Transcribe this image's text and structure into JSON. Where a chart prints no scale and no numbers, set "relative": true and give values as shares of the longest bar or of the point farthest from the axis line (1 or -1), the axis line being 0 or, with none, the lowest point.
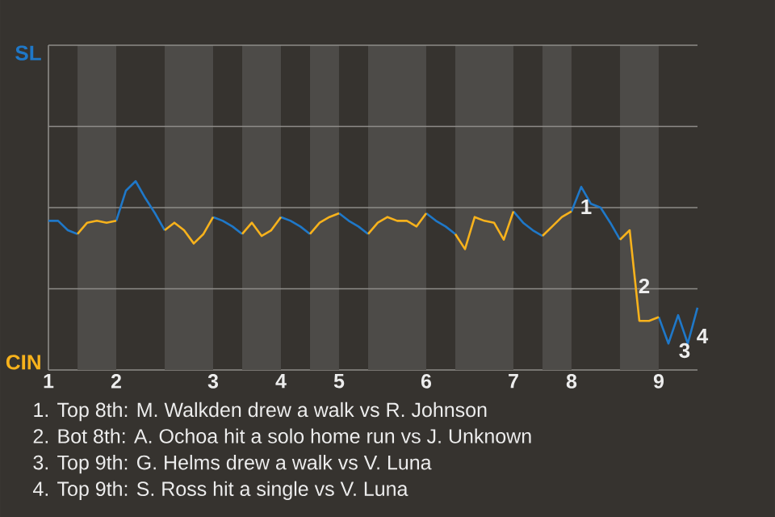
{
  "chart_data": {
    "type": "line",
    "relative": true,
    "categories": [
      "1",
      null,
      null,
      null,
      null,
      null,
      null,
      "2",
      null,
      null,
      null,
      null,
      null,
      null,
      null,
      null,
      null,
      "3",
      null,
      null,
      null,
      null,
      null,
      null,
      "4",
      null,
      null,
      null,
      null,
      null,
      "5",
      null,
      null,
      null,
      null,
      null,
      null,
      null,
      null,
      "6",
      null,
      null,
      null,
      null,
      null,
      null,
      null,
      null,
      "7",
      null,
      null,
      null,
      null,
      null,
      "8",
      null,
      null,
      null,
      null,
      null,
      null,
      null,
      null,
      "9",
      null,
      null,
      null,
      null
    ],
    "series": [
      {
        "color": "#1f78c8",
        "values": [
          0.79,
          0.79,
          0.74,
          0.72,
          null,
          null,
          null,
          0.79,
          0.95,
          1,
          0.91,
          0.83,
          0.74,
          null,
          null,
          null,
          null,
          0.81,
          0.79,
          0.76,
          0.72,
          null,
          null,
          null,
          0.81,
          0.79,
          0.76,
          0.72,
          null,
          null,
          0.83,
          0.79,
          0.76,
          0.72,
          null,
          null,
          null,
          null,
          null,
          0.83,
          0.79,
          0.76,
          0.72,
          null,
          null,
          null,
          null,
          null,
          0.84,
          0.78,
          0.74,
          0.71,
          null,
          null,
          0.84,
          0.97,
          0.88,
          0.86,
          0.78,
          0.69,
          null,
          null,
          null,
          0.28,
          0.14,
          0.29,
          0.14,
          0.33
        ]
      },
      {
        "color": "#f7b21c",
        "values": [
          null,
          null,
          null,
          0.72,
          0.78,
          0.79,
          0.78,
          0.79,
          null,
          null,
          null,
          null,
          0.74,
          0.78,
          0.74,
          0.67,
          0.72,
          0.81,
          null,
          null,
          0.72,
          0.78,
          0.71,
          0.74,
          0.81,
          null,
          null,
          0.72,
          0.78,
          0.81,
          0.83,
          null,
          null,
          0.72,
          0.78,
          0.81,
          0.79,
          0.79,
          0.76,
          0.83,
          null,
          null,
          0.72,
          0.64,
          0.81,
          0.79,
          0.78,
          0.69,
          0.84,
          null,
          null,
          0.71,
          0.76,
          0.81,
          0.84,
          null,
          null,
          null,
          null,
          0.69,
          0.74,
          0.26,
          0.26,
          0.28,
          null,
          null,
          null,
          null
        ]
      }
    ],
    "ref_lines": [
      {
        "axis": "y",
        "value": 0.43,
        "color": "#8e8c89"
      },
      {
        "axis": "y",
        "value": 0.86,
        "color": "#8e8c89"
      },
      {
        "axis": "y",
        "value": 1.29,
        "color": "#8e8c89"
      },
      {
        "axis": "y",
        "value": 1.72,
        "color": "#8e8c89"
      }
    ],
    "annotations": [
      "1",
      "2",
      "3",
      "4",
      "SL",
      "CIN",
      "1. Top 8th: M. Walkden drew a walk vs R. Johnson",
      "2. Bot 8th: A. Ochoa hit a solo home run vs J. Unknown",
      "3. Top 9th: G. Helms drew a walk vs V. Luna",
      "4. Top 9th: S. Ross hit a single vs V. Luna"
    ]
  }
}
